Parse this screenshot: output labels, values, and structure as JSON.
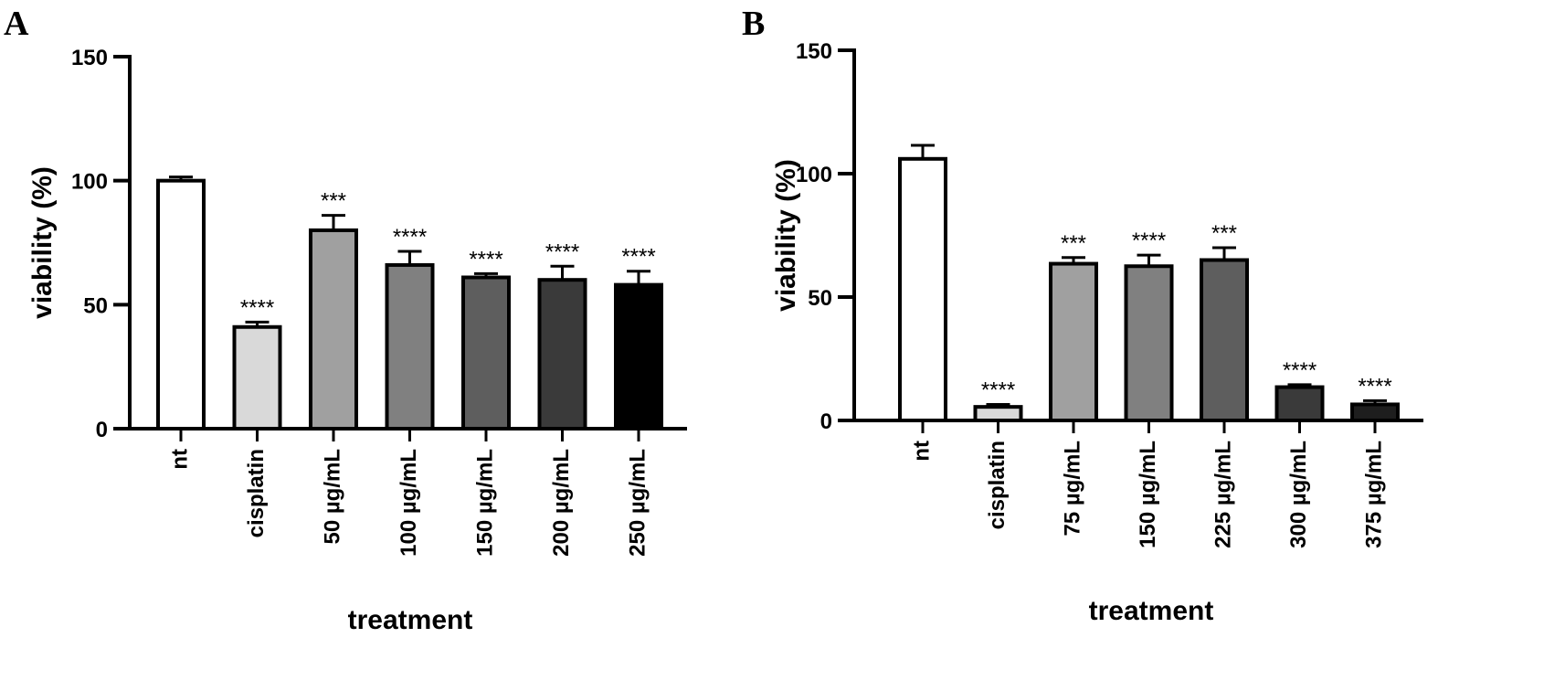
{
  "panels": [
    {
      "letter": "A"
    },
    {
      "letter": "B"
    }
  ],
  "chart_data": [
    {
      "type": "bar",
      "panel": "A",
      "xlabel": "treatment",
      "ylabel": "viability (%)",
      "ylim": [
        0,
        150
      ],
      "yticks": [
        0,
        50,
        100,
        150
      ],
      "grid": false,
      "categories": [
        "nt",
        "cisplatin",
        "50 µg/mL",
        "100 µg/mL",
        "150 µg/mL",
        "200 µg/mL",
        "250 µg/mL"
      ],
      "values": [
        100,
        41,
        80,
        66,
        61,
        60,
        58
      ],
      "errors": [
        1.5,
        2,
        6,
        5.5,
        1.5,
        5.5,
        5.5
      ],
      "significance": [
        "",
        "****",
        "***",
        "****",
        "****",
        "****",
        "****"
      ],
      "colors": [
        "#ffffff",
        "#d9d9d9",
        "#a0a0a0",
        "#808080",
        "#5e5e5e",
        "#3a3a3a",
        "#000000"
      ]
    },
    {
      "type": "bar",
      "panel": "B",
      "xlabel": "treatment",
      "ylabel": "viability (%)",
      "ylim": [
        0,
        150
      ],
      "yticks": [
        0,
        50,
        100,
        150
      ],
      "grid": false,
      "categories": [
        "nt",
        "cisplatin",
        "75 µg/mL",
        "150 µg/mL",
        "225 µg/mL",
        "300 µg/mL",
        "375 µg/mL"
      ],
      "values": [
        106,
        5.5,
        63.5,
        62.5,
        65,
        13.5,
        6.5
      ],
      "errors": [
        5.5,
        1,
        2.5,
        4.5,
        5,
        1,
        1.5
      ],
      "significance": [
        "",
        "****",
        "***",
        "****",
        "***",
        "****",
        "****"
      ],
      "colors": [
        "#ffffff",
        "#d9d9d9",
        "#a0a0a0",
        "#808080",
        "#5e5e5e",
        "#3a3a3a",
        "#1e1e1e"
      ]
    }
  ]
}
